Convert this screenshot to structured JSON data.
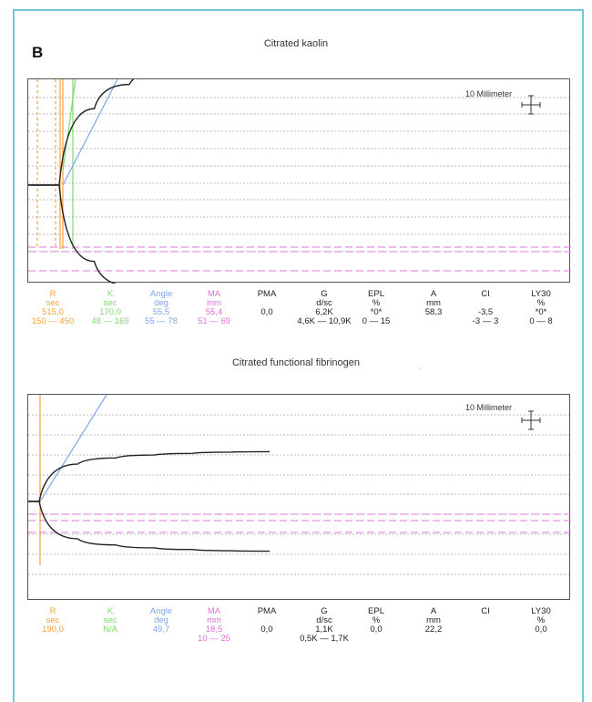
{
  "panel_label": "B",
  "charts": [
    {
      "title": "Citrated kaolin",
      "scale_label": "10 Millimeter",
      "params": [
        {
          "name": "R",
          "unit": "sec",
          "value": "515,0",
          "range": "150 — 450",
          "color": "#f7a238"
        },
        {
          "name": "K",
          "unit": "sec",
          "value": "170,0",
          "range": "48 — 169",
          "color": "#7cdb6c"
        },
        {
          "name": "Angle",
          "unit": "deg",
          "value": "55,5",
          "range": "55 — 78",
          "color": "#7ea7ea"
        },
        {
          "name": "MA",
          "unit": "mm",
          "value": "55,4",
          "range": "51 — 69",
          "color": "#d873d8"
        },
        {
          "name": "PMA",
          "unit": "",
          "value": "0,0",
          "range": "",
          "color": "#222222"
        },
        {
          "name": "G",
          "unit": "d/sc",
          "value": "6,2K",
          "range": "4,6K — 10,9K",
          "color": "#222222"
        },
        {
          "name": "EPL",
          "unit": "%",
          "value": "*0*",
          "range": "0 — 15",
          "color": "#222222"
        },
        {
          "name": "A",
          "unit": "mm",
          "value": "58,3",
          "range": "",
          "color": "#222222"
        },
        {
          "name": "CI",
          "unit": "",
          "value": "-3,5",
          "range": "-3 — 3",
          "color": "#222222"
        },
        {
          "name": "LY30",
          "unit": "%",
          "value": "*0*",
          "range": "0 — 8",
          "color": "#222222"
        }
      ]
    },
    {
      "title": "Citrated functional fibrinogen",
      "scale_label": "10 Millimeter",
      "params": [
        {
          "name": "R",
          "unit": "sec",
          "value": "190,0",
          "range": "",
          "color": "#f7a238"
        },
        {
          "name": "K",
          "unit": "sec",
          "value": "N/A",
          "range": "",
          "color": "#7cdb6c"
        },
        {
          "name": "Angle",
          "unit": "deg",
          "value": "49,7",
          "range": "",
          "color": "#7ea7ea"
        },
        {
          "name": "MA",
          "unit": "mm",
          "value": "18,5",
          "range": "10 — 25",
          "color": "#d873d8"
        },
        {
          "name": "PMA",
          "unit": "",
          "value": "0,0",
          "range": "",
          "color": "#222222"
        },
        {
          "name": "G",
          "unit": "d/sc",
          "value": "1,1K",
          "range": "0,5K — 1,7K",
          "color": "#222222"
        },
        {
          "name": "EPL",
          "unit": "%",
          "value": "0,0",
          "range": "",
          "color": "#222222"
        },
        {
          "name": "A",
          "unit": "mm",
          "value": "22,2",
          "range": "",
          "color": "#222222"
        },
        {
          "name": "CI",
          "unit": "",
          "value": "",
          "range": "",
          "color": "#222222"
        },
        {
          "name": "LY30",
          "unit": "%",
          "value": "0,0",
          "range": "",
          "color": "#222222"
        }
      ]
    }
  ],
  "chart_data": [
    {
      "type": "line",
      "title": "Citrated kaolin",
      "xlabel": "",
      "ylabel": "",
      "series": [
        {
          "name": "",
          "color": "#222222",
          "values": [
            0,
            0,
            22,
            29,
            33,
            35.5,
            37,
            38
          ]
        }
      ],
      "markers": {
        "R": 515,
        "K": 170,
        "Angle": 55.5,
        "MA": 55.4,
        "A": 58.3
      },
      "reference_ranges": {
        "R": [
          150,
          450
        ],
        "K": [
          48,
          169
        ],
        "Angle": [
          55,
          78
        ],
        "MA": [
          51,
          69
        ]
      }
    },
    {
      "type": "line",
      "title": "Citrated functional fibrinogen",
      "xlabel": "",
      "ylabel": "",
      "series": [
        {
          "name": "",
          "color": "#222222",
          "values": [
            0,
            0,
            9,
            10.5,
            11.2,
            11.6,
            11.9,
            12
          ]
        }
      ],
      "markers": {
        "R": 190,
        "Angle": 49.7,
        "MA": 18.5,
        "A": 22.2
      },
      "reference_ranges": {
        "MA": [
          10,
          25
        ]
      }
    }
  ]
}
